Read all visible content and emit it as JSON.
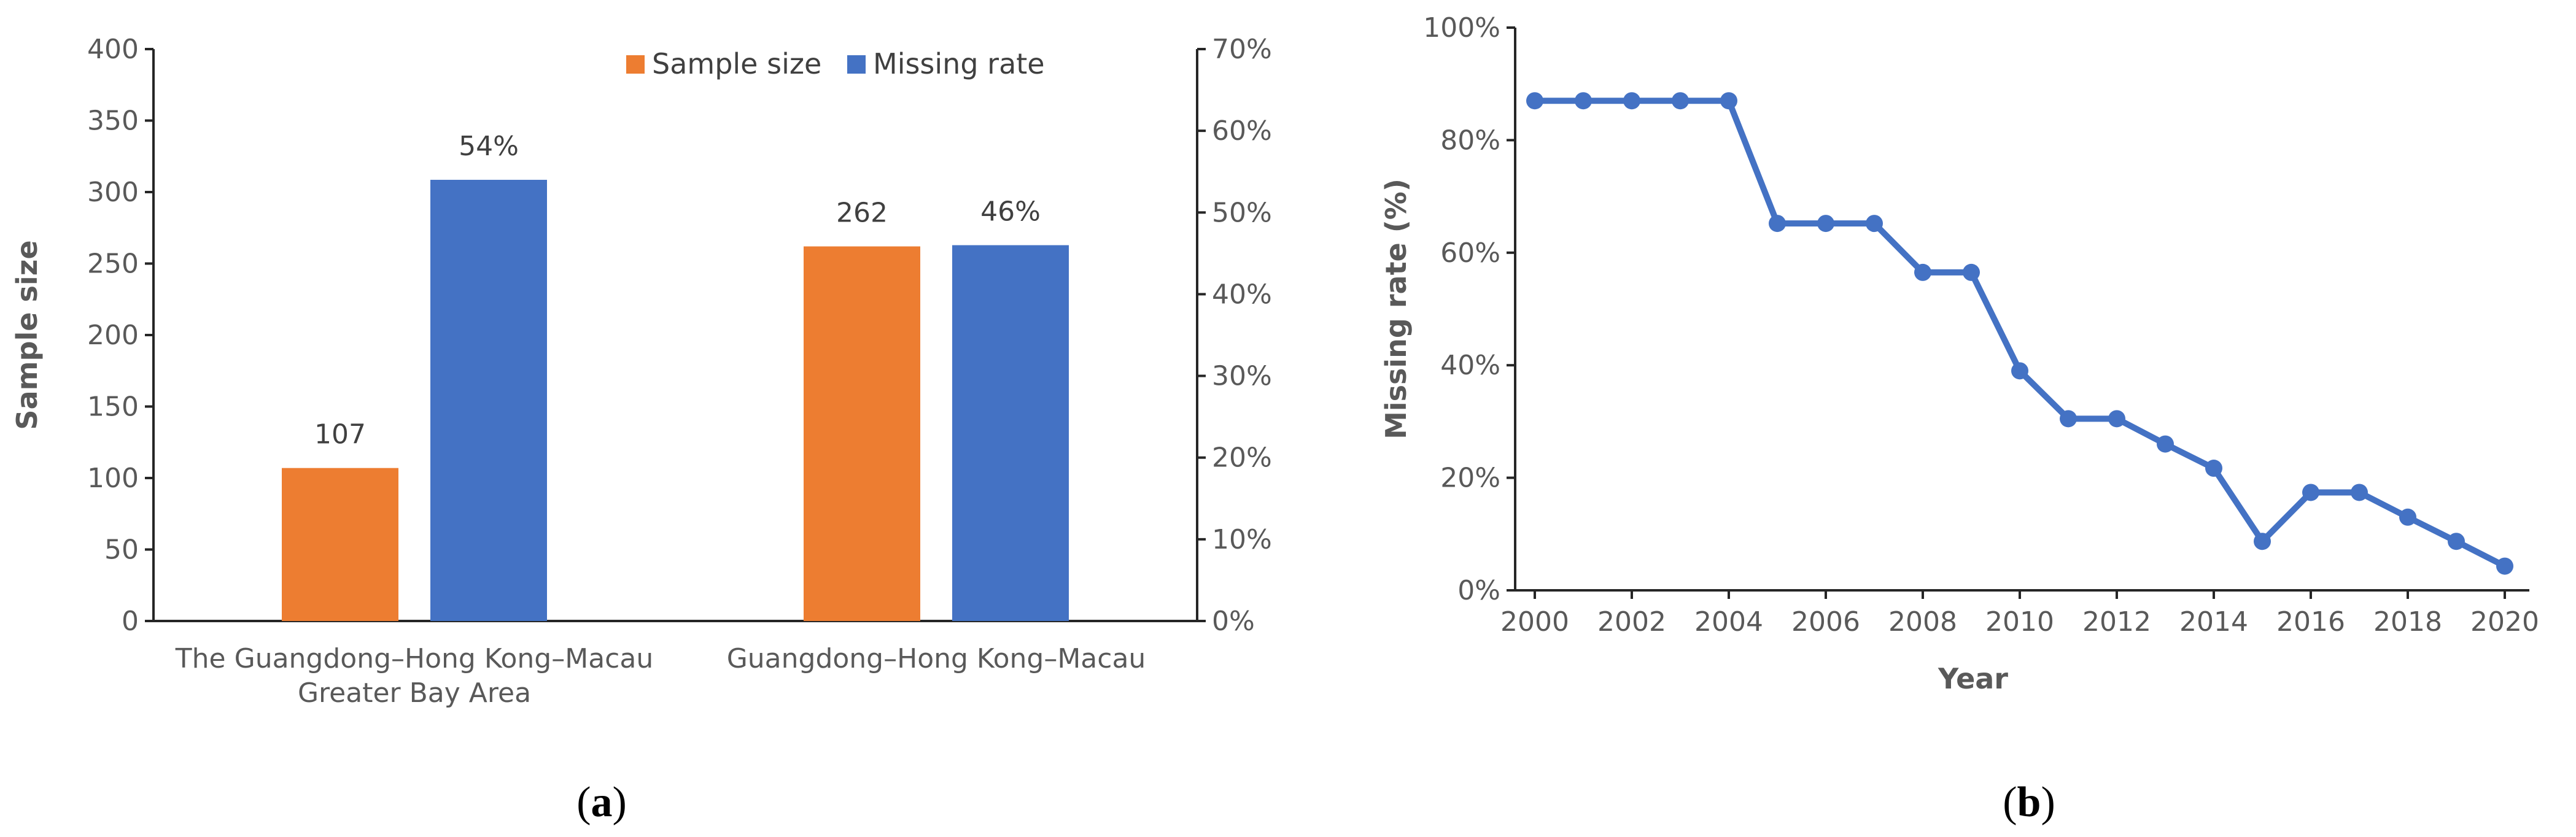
{
  "chart_data": [
    {
      "type": "bar",
      "panel_label": "a",
      "categories": [
        [
          "The Guangdong–Hong Kong–Macau",
          "Greater Bay Area"
        ],
        [
          "Guangdong–Hong Kong–Macau"
        ]
      ],
      "series": [
        {
          "name": "Sample size",
          "axis": "left",
          "color": "#ED7D31",
          "values": [
            107,
            262
          ],
          "labels": [
            "107",
            "262"
          ]
        },
        {
          "name": "Missing rate",
          "axis": "right",
          "color": "#4472C4",
          "values": [
            0.54,
            0.46
          ],
          "labels": [
            "54%",
            "46%"
          ]
        }
      ],
      "ylabel": "Sample size",
      "ylim": [
        0,
        400
      ],
      "yticks": [
        "0",
        "50",
        "100",
        "150",
        "200",
        "250",
        "300",
        "350",
        "400"
      ],
      "y2lim": [
        0,
        0.7
      ],
      "y2ticks": [
        "0%",
        "10%",
        "20%",
        "30%",
        "40%",
        "50%",
        "60%",
        "70%"
      ],
      "legend": "top-right",
      "grid": false
    },
    {
      "type": "line",
      "panel_label": "b",
      "x": [
        2000,
        2001,
        2002,
        2003,
        2004,
        2005,
        2006,
        2007,
        2008,
        2009,
        2010,
        2011,
        2012,
        2013,
        2014,
        2015,
        2016,
        2017,
        2018,
        2019,
        2020
      ],
      "series": [
        {
          "color": "#4472C4",
          "values": [
            0.87,
            0.87,
            0.87,
            0.87,
            0.87,
            0.652,
            0.652,
            0.652,
            0.565,
            0.565,
            0.39,
            0.305,
            0.305,
            0.26,
            0.217,
            0.087,
            0.174,
            0.174,
            0.13,
            0.087,
            0.043
          ]
        }
      ],
      "xticks": [
        "2000",
        "2002",
        "2004",
        "2006",
        "2008",
        "2010",
        "2012",
        "2014",
        "2016",
        "2018",
        "2020"
      ],
      "xlabel": "Year",
      "ylabel": "Missing rate  (%)",
      "ylim": [
        0,
        1
      ],
      "yticks": [
        "0%",
        "20%",
        "40%",
        "60%",
        "80%",
        "100%"
      ],
      "grid": false
    }
  ]
}
